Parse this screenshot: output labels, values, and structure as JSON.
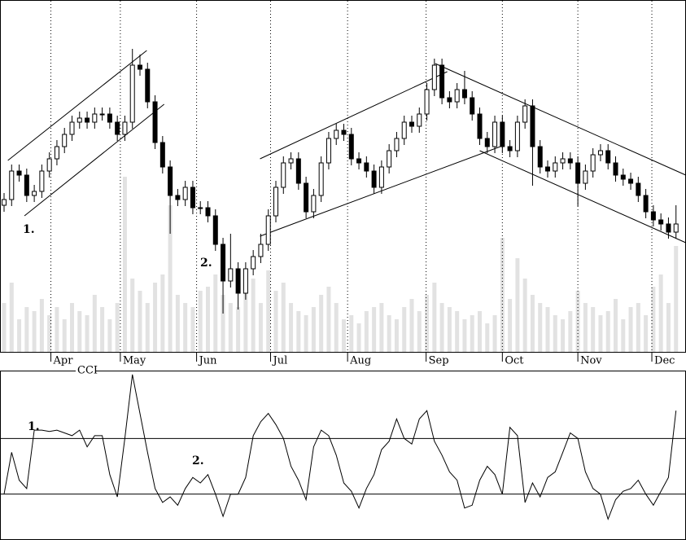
{
  "chart_data": [
    {
      "type": "candlestick",
      "xlim": [
        0,
        90
      ],
      "ylim": [
        0,
        432
      ],
      "vol_lim": [
        0,
        432
      ],
      "xticks": [
        {
          "value": 6.2,
          "label": "Apr"
        },
        {
          "value": 15.4,
          "label": "May"
        },
        {
          "value": 25.5,
          "label": "Jun"
        },
        {
          "value": 35.3,
          "label": "Jul"
        },
        {
          "value": 45.5,
          "label": "Aug"
        },
        {
          "value": 55.9,
          "label": "Sep"
        },
        {
          "value": 66,
          "label": "Oct"
        },
        {
          "value": 76,
          "label": "Nov"
        },
        {
          "value": 85.8,
          "label": "Dec"
        }
      ],
      "open": [
        180,
        187,
        222,
        217,
        192,
        197,
        222,
        237,
        252,
        267,
        282,
        287,
        282,
        292,
        292,
        282,
        267,
        282,
        352,
        347,
        307,
        257,
        227,
        192,
        187,
        202,
        177,
        177,
        167,
        132,
        87,
        102,
        72,
        102,
        117,
        132,
        167,
        202,
        232,
        237,
        207,
        172,
        192,
        232,
        262,
        272,
        267,
        237,
        232,
        222,
        202,
        227,
        247,
        262,
        282,
        277,
        292,
        322,
        352,
        312,
        307,
        322,
        312,
        292,
        262,
        252,
        282,
        252,
        247,
        282,
        302,
        252,
        227,
        222,
        232,
        237,
        232,
        207,
        222,
        242,
        247,
        232,
        217,
        212,
        207,
        192,
        172,
        162,
        157,
        147
      ],
      "close": [
        187,
        222,
        217,
        192,
        197,
        222,
        237,
        252,
        267,
        282,
        287,
        282,
        292,
        292,
        282,
        267,
        282,
        352,
        347,
        307,
        257,
        227,
        192,
        187,
        202,
        177,
        177,
        167,
        132,
        87,
        102,
        72,
        102,
        117,
        132,
        167,
        202,
        232,
        237,
        207,
        172,
        192,
        232,
        262,
        272,
        267,
        237,
        232,
        222,
        202,
        227,
        247,
        262,
        282,
        277,
        292,
        322,
        352,
        312,
        307,
        322,
        312,
        292,
        262,
        252,
        282,
        252,
        247,
        282,
        302,
        252,
        227,
        222,
        232,
        237,
        232,
        207,
        222,
        242,
        247,
        232,
        217,
        212,
        207,
        192,
        172,
        162,
        157,
        147,
        157
      ],
      "high": [
        195,
        230,
        230,
        225,
        205,
        230,
        245,
        260,
        275,
        290,
        295,
        295,
        300,
        300,
        300,
        290,
        290,
        372,
        365,
        355,
        315,
        265,
        235,
        200,
        210,
        210,
        185,
        185,
        175,
        140,
        145,
        110,
        110,
        125,
        145,
        175,
        210,
        240,
        245,
        245,
        215,
        200,
        240,
        270,
        280,
        280,
        275,
        245,
        240,
        230,
        235,
        255,
        270,
        290,
        290,
        300,
        330,
        360,
        360,
        320,
        330,
        345,
        320,
        300,
        270,
        290,
        290,
        260,
        290,
        310,
        310,
        260,
        235,
        240,
        245,
        245,
        240,
        230,
        250,
        255,
        255,
        240,
        225,
        220,
        215,
        200,
        180,
        170,
        165,
        180
      ],
      "low": [
        172,
        179,
        209,
        184,
        184,
        189,
        214,
        229,
        244,
        259,
        274,
        274,
        274,
        284,
        274,
        259,
        259,
        274,
        339,
        299,
        249,
        219,
        145,
        179,
        179,
        169,
        169,
        159,
        124,
        47,
        79,
        52,
        64,
        94,
        109,
        124,
        159,
        194,
        224,
        199,
        164,
        164,
        184,
        224,
        254,
        259,
        229,
        224,
        214,
        194,
        194,
        219,
        239,
        254,
        269,
        269,
        284,
        314,
        304,
        299,
        299,
        304,
        284,
        254,
        244,
        244,
        244,
        239,
        239,
        274,
        204,
        219,
        214,
        214,
        224,
        224,
        179,
        199,
        214,
        234,
        224,
        209,
        204,
        199,
        184,
        164,
        154,
        149,
        139,
        139
      ],
      "volume": [
        60,
        85,
        40,
        55,
        50,
        65,
        45,
        55,
        40,
        60,
        50,
        45,
        70,
        55,
        40,
        60,
        215,
        90,
        75,
        60,
        85,
        95,
        180,
        70,
        60,
        55,
        75,
        80,
        95,
        70,
        60,
        55,
        80,
        90,
        60,
        100,
        75,
        85,
        60,
        50,
        45,
        55,
        70,
        80,
        60,
        40,
        45,
        35,
        50,
        55,
        60,
        45,
        40,
        55,
        65,
        50,
        70,
        85,
        60,
        55,
        50,
        40,
        45,
        50,
        35,
        45,
        140,
        65,
        115,
        90,
        70,
        60,
        55,
        45,
        40,
        50,
        75,
        60,
        55,
        45,
        50,
        65,
        40,
        55,
        60,
        45,
        80,
        95,
        60,
        130
      ],
      "trendlines": [
        {
          "x": [
            0.5,
            18.9
          ],
          "y": [
            235,
            370
          ]
        },
        {
          "x": [
            2.7,
            21.2
          ],
          "y": [
            167,
            304
          ]
        },
        {
          "x": [
            33.9,
            58.7
          ],
          "y": [
            237,
            344
          ]
        },
        {
          "x": [
            33.9,
            66.3
          ],
          "y": [
            142,
            254
          ]
        },
        {
          "x": [
            57.1,
            90.3
          ],
          "y": [
            354,
            217
          ]
        },
        {
          "x": [
            63,
            90.3
          ],
          "y": [
            247,
            134
          ]
        }
      ],
      "annotations": [
        "1.",
        "2."
      ]
    },
    {
      "type": "line",
      "title": "CCI",
      "xlim": [
        0,
        90
      ],
      "ylim": [
        -262,
        341
      ],
      "yticks": [
        -100,
        100
      ],
      "color": "#000000",
      "values": [
        -100,
        50,
        -50,
        -80,
        130,
        130,
        125,
        130,
        120,
        110,
        130,
        70,
        110,
        110,
        -30,
        -110,
        100,
        330,
        190,
        50,
        -80,
        -130,
        -110,
        -140,
        -80,
        -40,
        -60,
        -30,
        -100,
        -180,
        -100,
        -100,
        -40,
        110,
        160,
        190,
        150,
        100,
        0,
        -50,
        -120,
        70,
        130,
        110,
        40,
        -60,
        -90,
        -150,
        -80,
        -30,
        60,
        90,
        170,
        100,
        80,
        170,
        200,
        90,
        40,
        -20,
        -50,
        -150,
        -140,
        -50,
        0,
        -30,
        -100,
        140,
        110,
        -130,
        -60,
        -110,
        -40,
        -20,
        50,
        120,
        100,
        -20,
        -80,
        -100,
        -190,
        -120,
        -90,
        -80,
        -50,
        -100,
        -140,
        -90,
        -40,
        200
      ],
      "annotations": [
        "1.",
        "2."
      ]
    }
  ]
}
